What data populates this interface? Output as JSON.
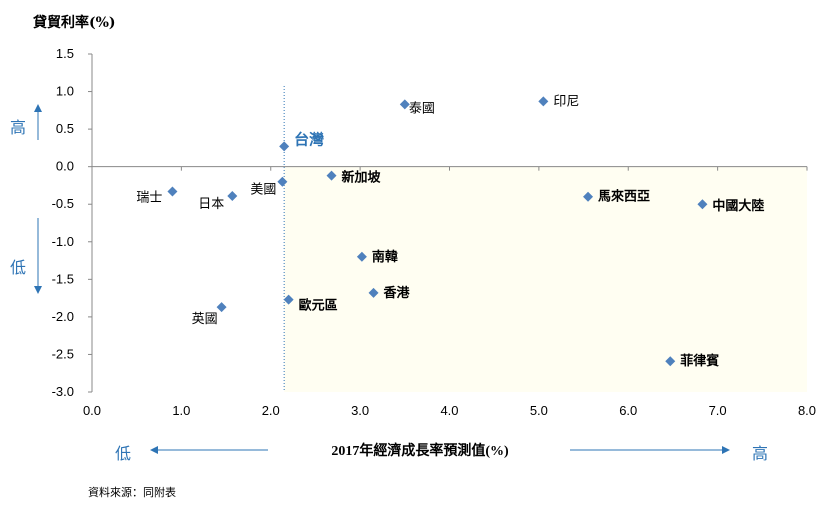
{
  "chart_data": {
    "type": "scatter",
    "title": "",
    "ylabel": "貸貿利率(%)",
    "xlabel": "2017年經濟成長率預測值(%)",
    "xlim": [
      0,
      8
    ],
    "ylim": [
      -3,
      1.5
    ],
    "xticks": [
      "0.0",
      "1.0",
      "2.0",
      "3.0",
      "4.0",
      "5.0",
      "6.0",
      "7.0",
      "8.0"
    ],
    "yticks": [
      "1.5",
      "1.0",
      "0.5",
      "0.0",
      "-0.5",
      "-1.0",
      "-1.5",
      "-2.0",
      "-2.5",
      "-3.0"
    ],
    "reference_x": 2.15,
    "points": [
      {
        "label": "泰國",
        "x": 3.5,
        "y": 0.83,
        "bold": false,
        "highlight": false
      },
      {
        "label": "印尼",
        "x": 5.05,
        "y": 0.87,
        "bold": false,
        "highlight": false
      },
      {
        "label": "台灣",
        "x": 2.15,
        "y": 0.27,
        "bold": true,
        "highlight": true
      },
      {
        "label": "新加坡",
        "x": 2.68,
        "y": -0.12,
        "bold": true,
        "highlight": false
      },
      {
        "label": "美國",
        "x": 2.13,
        "y": -0.2,
        "bold": false,
        "highlight": false
      },
      {
        "label": "日本",
        "x": 1.57,
        "y": -0.39,
        "bold": false,
        "highlight": false
      },
      {
        "label": "瑞士",
        "x": 0.9,
        "y": -0.33,
        "bold": false,
        "highlight": false
      },
      {
        "label": "馬來西亞",
        "x": 5.55,
        "y": -0.4,
        "bold": true,
        "highlight": false
      },
      {
        "label": "中國大陸",
        "x": 6.83,
        "y": -0.5,
        "bold": true,
        "highlight": false
      },
      {
        "label": "南韓",
        "x": 3.02,
        "y": -1.2,
        "bold": true,
        "highlight": false
      },
      {
        "label": "香港",
        "x": 3.15,
        "y": -1.68,
        "bold": true,
        "highlight": false
      },
      {
        "label": "歐元區",
        "x": 2.2,
        "y": -1.77,
        "bold": true,
        "highlight": false
      },
      {
        "label": "英國",
        "x": 1.45,
        "y": -1.87,
        "bold": false,
        "highlight": false
      },
      {
        "label": "菲律賓",
        "x": 6.47,
        "y": -2.59,
        "bold": true,
        "highlight": false
      }
    ],
    "marker_color": "#4F81BD",
    "grid": false,
    "legend": "none"
  },
  "annotations": {
    "y_high": "高",
    "y_low": "低",
    "x_low": "低",
    "x_high": "高",
    "source": "資料來源：同附表"
  },
  "colors": {
    "accent": "#2E74B5",
    "shade": "#FFFEF2"
  }
}
